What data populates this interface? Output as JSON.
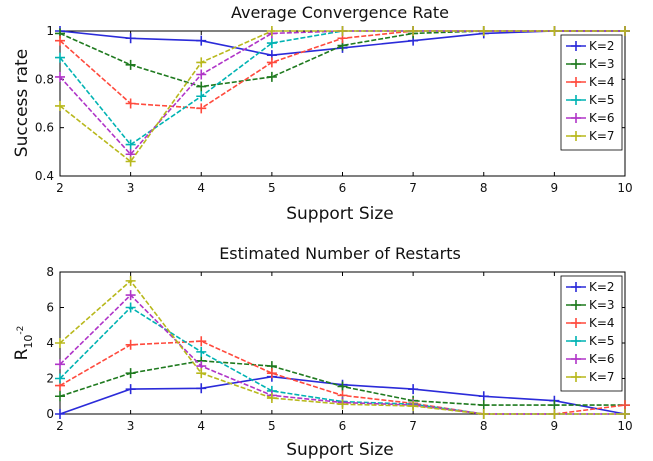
{
  "chart_data": [
    {
      "type": "line",
      "title": "Average Convergence Rate",
      "xlabel": "Support Size",
      "ylabel": "Success rate",
      "xlim": [
        2,
        10
      ],
      "ylim": [
        0.4,
        1.0
      ],
      "xticks": [
        "2",
        "3",
        "4",
        "5",
        "6",
        "7",
        "8",
        "9",
        "10"
      ],
      "yticks": [
        "0.4",
        "0.6",
        "0.8",
        "1"
      ],
      "grid": false,
      "legend_position": "right",
      "x": [
        2,
        3,
        4,
        5,
        6,
        7,
        8,
        9,
        10
      ],
      "series": [
        {
          "name": "K=2",
          "color": "#2b2bd9",
          "values": [
            1.0,
            0.97,
            0.96,
            0.9,
            0.93,
            0.96,
            0.99,
            1.0,
            1.0
          ]
        },
        {
          "name": "K=3",
          "color": "#1f7a1f",
          "values": [
            0.99,
            0.86,
            0.77,
            0.81,
            0.94,
            0.99,
            1.0,
            1.0,
            1.0
          ]
        },
        {
          "name": "K=4",
          "color": "#ff4a3d",
          "values": [
            0.96,
            0.7,
            0.68,
            0.87,
            0.97,
            1.0,
            1.0,
            1.0,
            1.0
          ]
        },
        {
          "name": "K=5",
          "color": "#00b3b3",
          "values": [
            0.89,
            0.53,
            0.73,
            0.95,
            1.0,
            1.0,
            1.0,
            1.0,
            1.0
          ]
        },
        {
          "name": "K=6",
          "color": "#b035c8",
          "values": [
            0.81,
            0.49,
            0.82,
            0.99,
            1.0,
            1.0,
            1.0,
            1.0,
            1.0
          ]
        },
        {
          "name": "K=7",
          "color": "#b8b81c",
          "values": [
            0.69,
            0.46,
            0.87,
            1.0,
            1.0,
            1.0,
            1.0,
            1.0,
            1.0
          ]
        }
      ]
    },
    {
      "type": "line",
      "title": "Estimated Number of Restarts",
      "xlabel": "Support Size",
      "ylabel": "R",
      "ylabel_subscript": "10",
      "ylabel_superscript": "-2",
      "xlim": [
        2,
        10
      ],
      "ylim": [
        0,
        8
      ],
      "xticks": [
        "2",
        "3",
        "4",
        "5",
        "6",
        "7",
        "8",
        "9",
        "10"
      ],
      "yticks": [
        "0",
        "2",
        "4",
        "6",
        "8"
      ],
      "grid": false,
      "legend_position": "right",
      "x": [
        2,
        3,
        4,
        5,
        6,
        7,
        8,
        9,
        10
      ],
      "series": [
        {
          "name": "K=2",
          "color": "#2b2bd9",
          "values": [
            0.0,
            1.4,
            1.45,
            2.1,
            1.65,
            1.4,
            1.0,
            0.75,
            0.0
          ]
        },
        {
          "name": "K=3",
          "color": "#1f7a1f",
          "values": [
            1.0,
            2.3,
            3.0,
            2.7,
            1.55,
            0.75,
            0.5,
            0.5,
            0.5
          ]
        },
        {
          "name": "K=4",
          "color": "#ff4a3d",
          "values": [
            1.6,
            3.9,
            4.1,
            2.3,
            1.05,
            0.6,
            0.0,
            0.0,
            0.5
          ]
        },
        {
          "name": "K=5",
          "color": "#00b3b3",
          "values": [
            2.0,
            6.0,
            3.5,
            1.3,
            0.7,
            0.55,
            0.0,
            0.0,
            0.0
          ]
        },
        {
          "name": "K=6",
          "color": "#b035c8",
          "values": [
            2.8,
            6.7,
            2.7,
            1.05,
            0.65,
            0.5,
            0.0,
            0.0,
            0.0
          ]
        },
        {
          "name": "K=7",
          "color": "#b8b81c",
          "values": [
            4.0,
            7.5,
            2.3,
            0.9,
            0.55,
            0.45,
            0.0,
            0.0,
            0.0
          ]
        }
      ]
    }
  ]
}
